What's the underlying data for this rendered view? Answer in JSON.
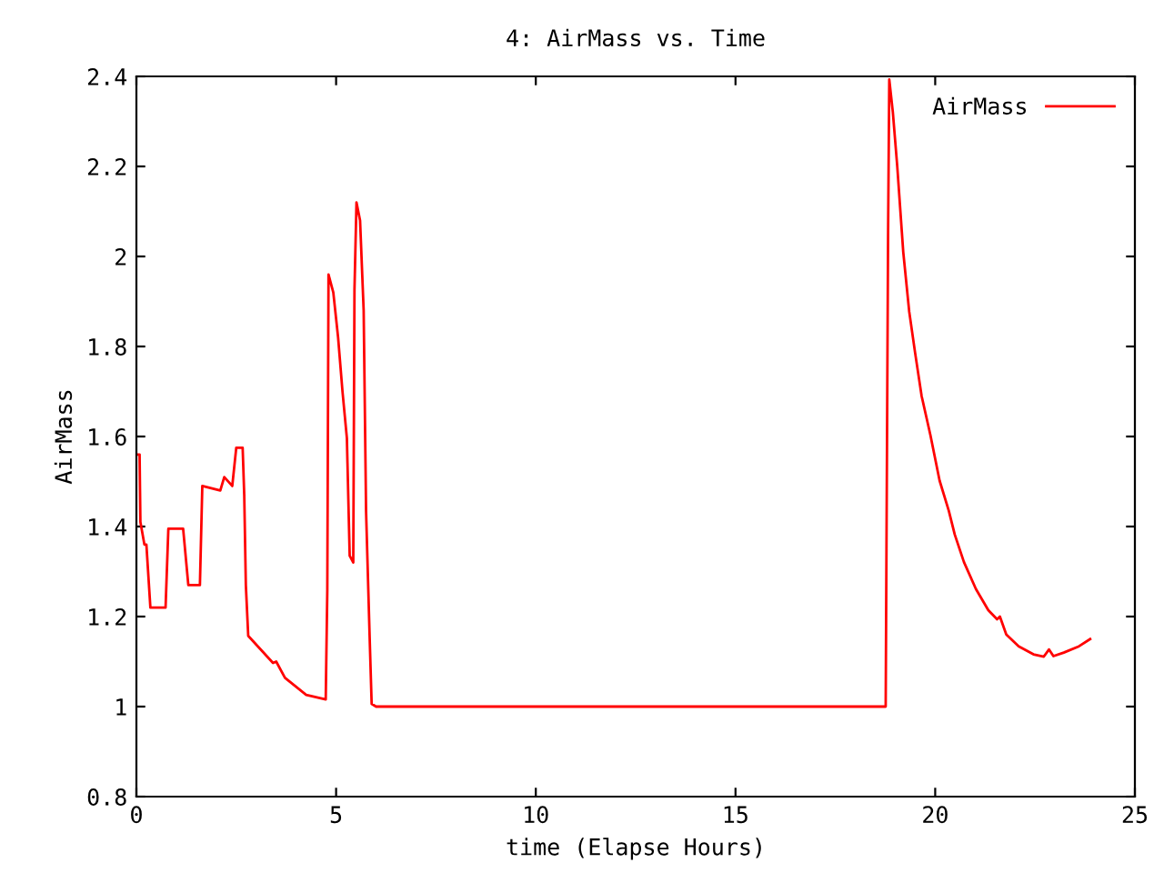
{
  "chart_data": {
    "type": "line",
    "title": "4: AirMass vs. Time",
    "xlabel": "time (Elapse Hours)",
    "ylabel": "AirMass",
    "xlim": [
      0,
      25
    ],
    "ylim": [
      0.8,
      2.4
    ],
    "xticks": [
      0,
      5,
      10,
      15,
      20,
      25
    ],
    "yticks": [
      0.8,
      1,
      1.2,
      1.4,
      1.6,
      1.8,
      2,
      2.2,
      2.4
    ],
    "grid": false,
    "legend": "top right",
    "series": [
      {
        "name": "AirMass",
        "color": "#ff0000",
        "x": [
          0,
          0.08,
          0.1,
          0.2,
          0.25,
          0.35,
          0.73,
          0.8,
          1.17,
          1.3,
          1.59,
          1.65,
          2.1,
          2.2,
          2.4,
          2.5,
          2.66,
          2.7,
          2.74,
          2.8,
          3.42,
          3.5,
          3.72,
          4.25,
          4.74,
          4.78,
          4.81,
          4.93,
          5.05,
          5.16,
          5.27,
          5.34,
          5.43,
          5.46,
          5.51,
          5.6,
          5.69,
          5.75,
          5.84,
          5.89,
          6.0,
          18.76,
          18.78,
          18.82,
          18.85,
          18.94,
          19.05,
          19.2,
          19.35,
          19.5,
          19.66,
          19.88,
          20.11,
          20.34,
          20.49,
          20.72,
          21.02,
          21.33,
          21.55,
          21.62,
          21.78,
          22.09,
          22.46,
          22.72,
          22.85,
          22.96,
          23.22,
          23.6,
          23.88
        ],
        "values": [
          1.56,
          1.56,
          1.41,
          1.36,
          1.36,
          1.22,
          1.22,
          1.395,
          1.395,
          1.27,
          1.27,
          1.49,
          1.48,
          1.51,
          1.49,
          1.575,
          1.575,
          1.47,
          1.27,
          1.157,
          1.097,
          1.1,
          1.064,
          1.026,
          1.016,
          1.26,
          1.96,
          1.92,
          1.82,
          1.7,
          1.596,
          1.335,
          1.32,
          1.926,
          2.12,
          2.08,
          1.88,
          1.435,
          1.154,
          1.006,
          1.0,
          1.0,
          1.35,
          2.045,
          2.393,
          2.32,
          2.2,
          2.01,
          1.877,
          1.784,
          1.69,
          1.603,
          1.502,
          1.435,
          1.382,
          1.321,
          1.261,
          1.214,
          1.194,
          1.2,
          1.16,
          1.134,
          1.116,
          1.111,
          1.127,
          1.112,
          1.12,
          1.134,
          1.15
        ]
      }
    ]
  }
}
